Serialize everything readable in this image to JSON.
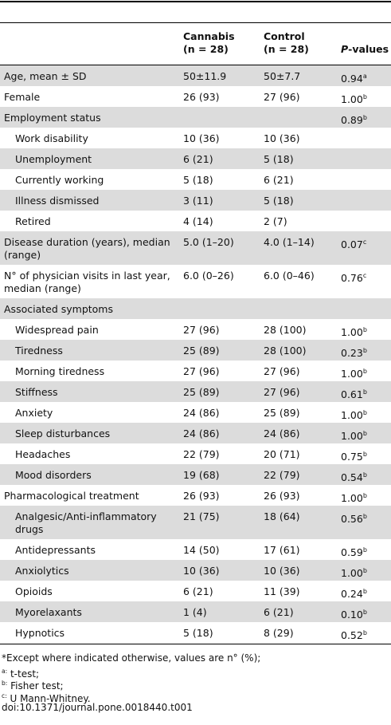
{
  "header": {
    "columns": [
      {
        "name": "Cannabis",
        "n": "(n = 28)"
      },
      {
        "name": "Control",
        "n": "(n = 28)"
      },
      {
        "italic": "P",
        "text": "-values"
      }
    ]
  },
  "table": {
    "rows": [
      {
        "label": "Age, mean ± SD",
        "cannabis": "50±11.9",
        "control": "50±7.7",
        "p": "0.94",
        "p_note": "a"
      },
      {
        "label": "Female",
        "cannabis": "26 (93)",
        "control": "27 (96)",
        "p": "1.00",
        "p_note": "b"
      },
      {
        "label": "Employment status",
        "p": "0.89",
        "p_note": "b",
        "subrows": [
          {
            "label": "Work disability",
            "cannabis": "10 (36)",
            "control": "10 (36)"
          },
          {
            "label": "Unemployment",
            "cannabis": "6 (21)",
            "control": "5 (18)"
          },
          {
            "label": "Currently working",
            "cannabis": "5 (18)",
            "control": "6 (21)"
          },
          {
            "label": "Illness dismissed",
            "cannabis": "3 (11)",
            "control": "5 (18)"
          },
          {
            "label": "Retired",
            "cannabis": "4 (14)",
            "control": "2 (7)"
          }
        ]
      },
      {
        "label": "Disease duration (years), median (range)",
        "cannabis": "5.0 (1–20)",
        "control": "4.0 (1–14)",
        "p": "0.07",
        "p_note": "c"
      },
      {
        "label": "N° of physician visits in last year, median (range)",
        "cannabis": "6.0 (0–26)",
        "control": "6.0 (0–46)",
        "p": "0.76",
        "p_note": "c"
      },
      {
        "label": "Associated symptoms",
        "subrows": [
          {
            "label": "Widespread pain",
            "cannabis": "27 (96)",
            "control": "28 (100)",
            "p": "1.00",
            "p_note": "b"
          },
          {
            "label": "Tiredness",
            "cannabis": "25 (89)",
            "control": "28 (100)",
            "p": "0.23",
            "p_note": "b"
          },
          {
            "label": "Morning tiredness",
            "cannabis": "27 (96)",
            "control": "27 (96)",
            "p": "1.00",
            "p_note": "b"
          },
          {
            "label": "Stiffness",
            "cannabis": "25 (89)",
            "control": "27 (96)",
            "p": "0.61",
            "p_note": "b"
          },
          {
            "label": "Anxiety",
            "cannabis": "24 (86)",
            "control": "25 (89)",
            "p": "1.00",
            "p_note": "b"
          },
          {
            "label": "Sleep disturbances",
            "cannabis": "24 (86)",
            "control": "24 (86)",
            "p": "1.00",
            "p_note": "b"
          },
          {
            "label": "Headaches",
            "cannabis": "22 (79)",
            "control": "20 (71)",
            "p": "0.75",
            "p_note": "b"
          },
          {
            "label": "Mood disorders",
            "cannabis": "19 (68)",
            "control": "22 (79)",
            "p": "0.54",
            "p_note": "b"
          }
        ]
      },
      {
        "label": "Pharmacological treatment",
        "cannabis": "26 (93)",
        "control": "26 (93)",
        "p": "1.00",
        "p_note": "b",
        "subrows": [
          {
            "label": "Analgesic/Anti-inflammatory drugs",
            "cannabis": "21 (75)",
            "control": "18 (64)",
            "p": "0.56",
            "p_note": "b"
          },
          {
            "label": "Antidepressants",
            "cannabis": "14 (50)",
            "control": "17 (61)",
            "p": "0.59",
            "p_note": "b"
          },
          {
            "label": "Anxiolytics",
            "cannabis": "10 (36)",
            "control": "10 (36)",
            "p": "1.00",
            "p_note": "b"
          },
          {
            "label": "Opioids",
            "cannabis": "6 (21)",
            "control": "11 (39)",
            "p": "0.24",
            "p_note": "b"
          },
          {
            "label": "Myorelaxants",
            "cannabis": "1 (4)",
            "control": "6 (21)",
            "p": "0.10",
            "p_note": "b"
          },
          {
            "label": "Hypnotics",
            "cannabis": "5 (18)",
            "control": "8 (29)",
            "p": "0.52",
            "p_note": "b"
          }
        ]
      }
    ]
  },
  "footnotes": {
    "general": "*Except where indicated otherwise, values are n° (%);",
    "notes": [
      {
        "marker": "a:",
        "text": "t-test;"
      },
      {
        "marker": "b:",
        "text": "Fisher test;"
      },
      {
        "marker": "c:",
        "text": "U Mann-Whitney."
      }
    ],
    "doi": "doi:10.1371/journal.pone.0018440.t001"
  }
}
